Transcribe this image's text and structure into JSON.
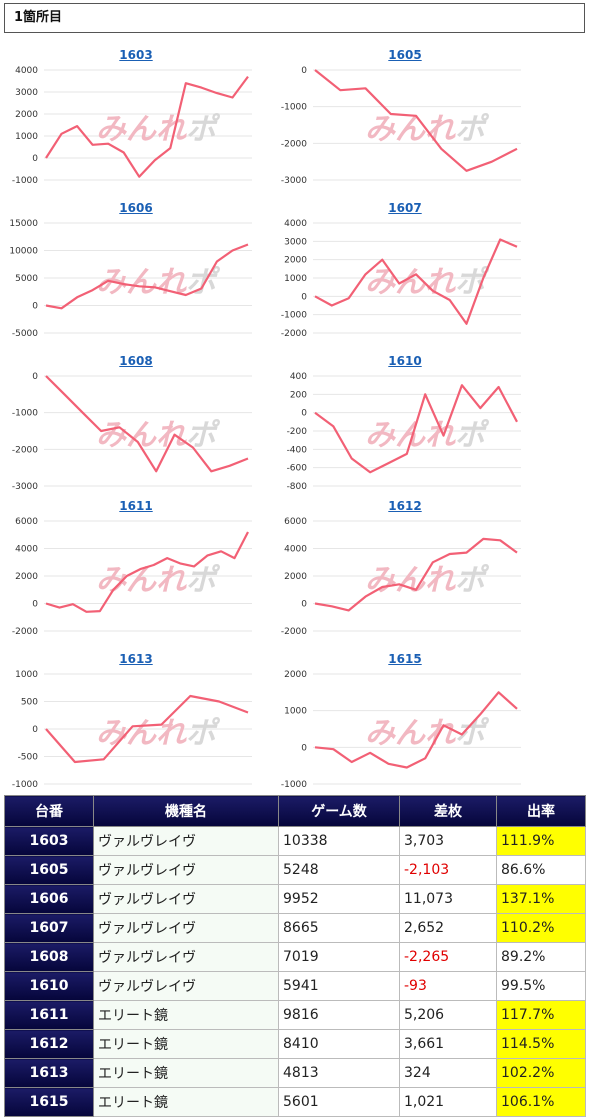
{
  "header": {
    "title": "1箇所目"
  },
  "watermark": {
    "part1": "みんれ",
    "part2": "ポ"
  },
  "colors": {
    "line": "#f26075",
    "grid": "#e6e6e6",
    "title_link": "#1a5fb4",
    "table_head": "#0a0a4a",
    "highlight": "#ffff00",
    "negative": "#e00000"
  },
  "chart_data": [
    {
      "type": "line",
      "title": "1603",
      "yticks": [
        4000,
        3000,
        2000,
        1000,
        0,
        -1000
      ],
      "ylim": [
        -1000,
        4000
      ],
      "values": [
        0,
        1100,
        1450,
        600,
        650,
        250,
        -850,
        -100,
        450,
        3400,
        3200,
        2950,
        2750,
        3700
      ]
    },
    {
      "type": "line",
      "title": "1605",
      "yticks": [
        0,
        -1000,
        -2000,
        -3000
      ],
      "ylim": [
        -3000,
        0
      ],
      "values": [
        0,
        -550,
        -500,
        -1200,
        -1250,
        -2150,
        -2750,
        -2500,
        -2150
      ]
    },
    {
      "type": "line",
      "title": "1606",
      "yticks": [
        15000,
        10000,
        5000,
        0,
        -5000
      ],
      "ylim": [
        -5000,
        15000
      ],
      "values": [
        0,
        -500,
        1500,
        2800,
        4500,
        3900,
        3500,
        3300,
        2600,
        1900,
        3100,
        8000,
        10000,
        11100
      ]
    },
    {
      "type": "line",
      "title": "1607",
      "yticks": [
        4000,
        3000,
        2000,
        1000,
        0,
        -1000,
        -2000
      ],
      "ylim": [
        -2000,
        4000
      ],
      "values": [
        0,
        -500,
        -100,
        1200,
        2000,
        700,
        1200,
        300,
        -200,
        -1500,
        1000,
        3100,
        2700
      ]
    },
    {
      "type": "line",
      "title": "1608",
      "yticks": [
        0,
        -1000,
        -2000,
        -3000
      ],
      "ylim": [
        -3000,
        0
      ],
      "values": [
        0,
        -500,
        -1000,
        -1500,
        -1400,
        -1800,
        -2600,
        -1600,
        -1950,
        -2600,
        -2450,
        -2250
      ]
    },
    {
      "type": "line",
      "title": "1610",
      "yticks": [
        400,
        200,
        0,
        -200,
        -400,
        -600,
        -800
      ],
      "ylim": [
        -800,
        400
      ],
      "values": [
        0,
        -150,
        -500,
        -650,
        -550,
        -450,
        200,
        -250,
        300,
        50,
        280,
        -100
      ]
    },
    {
      "type": "line",
      "title": "1611",
      "yticks": [
        6000,
        4000,
        2000,
        0,
        -2000
      ],
      "ylim": [
        -2000,
        6000
      ],
      "values": [
        0,
        -300,
        -50,
        -600,
        -550,
        1000,
        2000,
        2500,
        2800,
        3300,
        2900,
        2700,
        3500,
        3800,
        3300,
        5200
      ]
    },
    {
      "type": "line",
      "title": "1612",
      "yticks": [
        6000,
        4000,
        2000,
        0,
        -2000
      ],
      "ylim": [
        -2000,
        6000
      ],
      "values": [
        0,
        -200,
        -500,
        500,
        1200,
        1400,
        1000,
        3000,
        3600,
        3700,
        4700,
        4600,
        3700
      ]
    },
    {
      "type": "line",
      "title": "1613",
      "yticks": [
        1000,
        500,
        0,
        -500,
        -1000
      ],
      "ylim": [
        -1000,
        1000
      ],
      "values": [
        0,
        -600,
        -550,
        50,
        80,
        600,
        500,
        300
      ]
    },
    {
      "type": "line",
      "title": "1615",
      "yticks": [
        2000,
        1000,
        0,
        -1000
      ],
      "ylim": [
        -1000,
        2000
      ],
      "values": [
        0,
        -50,
        -400,
        -150,
        -450,
        -550,
        -300,
        600,
        350,
        900,
        1500,
        1050
      ]
    }
  ],
  "table": {
    "headers": [
      "台番",
      "機種名",
      "ゲーム数",
      "差枚",
      "出率"
    ],
    "rows": [
      {
        "no": "1603",
        "name": "ヴァルヴレイヴ",
        "games": "10338",
        "diff": "3,703",
        "rate": "111.9%",
        "neg": false,
        "high": true
      },
      {
        "no": "1605",
        "name": "ヴァルヴレイヴ",
        "games": "5248",
        "diff": "-2,103",
        "rate": "86.6%",
        "neg": true,
        "high": false
      },
      {
        "no": "1606",
        "name": "ヴァルヴレイヴ",
        "games": "9952",
        "diff": "11,073",
        "rate": "137.1%",
        "neg": false,
        "high": true
      },
      {
        "no": "1607",
        "name": "ヴァルヴレイヴ",
        "games": "8665",
        "diff": "2,652",
        "rate": "110.2%",
        "neg": false,
        "high": true
      },
      {
        "no": "1608",
        "name": "ヴァルヴレイヴ",
        "games": "7019",
        "diff": "-2,265",
        "rate": "89.2%",
        "neg": true,
        "high": false
      },
      {
        "no": "1610",
        "name": "ヴァルヴレイヴ",
        "games": "5941",
        "diff": "-93",
        "rate": "99.5%",
        "neg": true,
        "high": false
      },
      {
        "no": "1611",
        "name": "エリート鏡",
        "games": "9816",
        "diff": "5,206",
        "rate": "117.7%",
        "neg": false,
        "high": true
      },
      {
        "no": "1612",
        "name": "エリート鏡",
        "games": "8410",
        "diff": "3,661",
        "rate": "114.5%",
        "neg": false,
        "high": true
      },
      {
        "no": "1613",
        "name": "エリート鏡",
        "games": "4813",
        "diff": "324",
        "rate": "102.2%",
        "neg": false,
        "high": true
      },
      {
        "no": "1615",
        "name": "エリート鏡",
        "games": "5601",
        "diff": "1,021",
        "rate": "106.1%",
        "neg": false,
        "high": true
      }
    ]
  }
}
